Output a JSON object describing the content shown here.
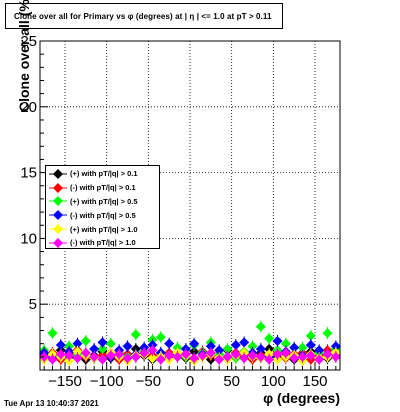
{
  "title": "Clone  over all for Primary vs φ (degrees) at | η | <= 1.0 at pT > 0.11",
  "timestamp": "Tue Apr 13 10:40:37 2021",
  "chart_data": {
    "type": "scatter",
    "xlabel": "φ (degrees)",
    "ylabel": "Clone  over all (%)",
    "xlim": [
      -180,
      180
    ],
    "ylim": [
      0,
      25
    ],
    "x_ticks": [
      -150,
      -100,
      -50,
      0,
      50,
      100,
      150
    ],
    "x_tick_labels": [
      "−150",
      "−100",
      "−50",
      "0",
      "50",
      "100",
      "150"
    ],
    "y_ticks": [
      0,
      5,
      10,
      15,
      20,
      25
    ],
    "y_tick_labels": [
      "",
      "5",
      "10",
      "15",
      "20",
      "25"
    ],
    "grid": true,
    "legend_position": "left-middle",
    "series": [
      {
        "name": "(+) with pT/|q| > 0.1",
        "color": "#000000",
        "marker": "diamond",
        "x": [
          -175,
          -165,
          -155,
          -145,
          -135,
          -125,
          -115,
          -105,
          -95,
          -85,
          -75,
          -65,
          -55,
          -45,
          -35,
          -25,
          -15,
          -5,
          5,
          15,
          25,
          35,
          45,
          55,
          65,
          75,
          85,
          95,
          105,
          115,
          125,
          135,
          145,
          155,
          165,
          175
        ],
        "y": [
          1.2,
          0.9,
          1.5,
          1.0,
          1.3,
          0.8,
          1.1,
          1.4,
          0.9,
          1.2,
          1.0,
          1.6,
          1.1,
          0.8,
          1.3,
          1.0,
          1.2,
          0.9,
          1.4,
          1.1,
          0.8,
          1.2,
          1.5,
          1.0,
          1.1,
          0.9,
          1.3,
          1.6,
          1.0,
          1.2,
          0.8,
          1.1,
          1.4,
          1.0,
          0.9,
          1.2
        ]
      },
      {
        "name": "(-) with pT/|q| > 0.1",
        "color": "#ff0000",
        "marker": "diamond",
        "x": [
          -175,
          -165,
          -155,
          -145,
          -135,
          -125,
          -115,
          -105,
          -95,
          -85,
          -75,
          -65,
          -55,
          -45,
          -35,
          -25,
          -15,
          -5,
          5,
          15,
          25,
          35,
          45,
          55,
          65,
          75,
          85,
          95,
          105,
          115,
          125,
          135,
          145,
          155,
          165,
          175
        ],
        "y": [
          1.0,
          1.3,
          0.8,
          1.2,
          1.5,
          1.0,
          0.9,
          1.1,
          1.3,
          0.8,
          1.2,
          1.0,
          1.4,
          1.1,
          0.9,
          1.3,
          1.0,
          1.2,
          0.8,
          1.4,
          1.1,
          0.9,
          1.0,
          1.3,
          1.2,
          0.8,
          1.1,
          1.0,
          1.4,
          0.9,
          1.2,
          1.3,
          0.8,
          1.1,
          1.5,
          1.0
        ]
      },
      {
        "name": "(+) with pT/|q| > 0.5",
        "color": "#00ff00",
        "marker": "diamond",
        "x": [
          -175,
          -165,
          -155,
          -145,
          -135,
          -125,
          -115,
          -105,
          -95,
          -85,
          -75,
          -65,
          -55,
          -45,
          -35,
          -25,
          -15,
          -5,
          5,
          15,
          25,
          35,
          45,
          55,
          65,
          75,
          85,
          95,
          105,
          115,
          125,
          135,
          145,
          155,
          165,
          175
        ],
        "y": [
          1.5,
          2.8,
          1.1,
          1.8,
          1.2,
          2.2,
          0.9,
          1.6,
          2.0,
          1.3,
          1.0,
          2.7,
          1.4,
          2.3,
          2.5,
          1.1,
          1.7,
          1.0,
          1.9,
          1.3,
          2.1,
          1.2,
          1.6,
          0.9,
          1.4,
          1.8,
          3.3,
          2.4,
          1.5,
          2.0,
          1.1,
          1.7,
          2.6,
          1.3,
          2.8,
          1.6
        ]
      },
      {
        "name": "(-) with pT/|q| > 0.5",
        "color": "#0000ff",
        "marker": "diamond",
        "x": [
          -175,
          -165,
          -155,
          -145,
          -135,
          -125,
          -115,
          -105,
          -95,
          -85,
          -75,
          -65,
          -55,
          -45,
          -35,
          -25,
          -15,
          -5,
          5,
          15,
          25,
          35,
          45,
          55,
          65,
          75,
          85,
          95,
          105,
          115,
          125,
          135,
          145,
          155,
          165,
          175
        ],
        "y": [
          1.3,
          1.0,
          1.9,
          1.4,
          2.0,
          1.1,
          1.6,
          2.1,
          1.0,
          1.5,
          1.8,
          1.2,
          1.7,
          1.9,
          1.3,
          2.0,
          1.1,
          1.6,
          2.0,
          1.2,
          1.8,
          1.5,
          1.0,
          1.9,
          2.1,
          1.3,
          1.6,
          1.0,
          2.2,
          1.4,
          1.7,
          1.1,
          1.9,
          1.5,
          1.2,
          1.8
        ]
      },
      {
        "name": "(+) with pT/|q| > 1.0",
        "color": "#ffff00",
        "marker": "diamond",
        "x": [
          -175,
          -165,
          -155,
          -145,
          -135,
          -125,
          -115,
          -105,
          -95,
          -85,
          -75,
          -65,
          -55,
          -45,
          -35,
          -25,
          -15,
          -5,
          5,
          15,
          25,
          35,
          45,
          55,
          65,
          75,
          85,
          95,
          105,
          115,
          125,
          135,
          145,
          155,
          165,
          175
        ],
        "y": [
          0.8,
          1.2,
          1.0,
          0.7,
          1.4,
          1.1,
          0.9,
          0.8,
          1.3,
          1.0,
          0.7,
          1.1,
          1.2,
          0.9,
          1.0,
          0.8,
          1.3,
          1.1,
          0.7,
          1.0,
          1.2,
          0.9,
          0.8,
          1.1,
          1.3,
          1.0,
          0.9,
          1.2,
          0.8,
          1.0,
          1.1,
          0.7,
          1.2,
          0.9,
          1.0,
          1.3
        ]
      },
      {
        "name": "(-) with pT/|q| > 1.0",
        "color": "#ff00ff",
        "marker": "diamond",
        "x": [
          -175,
          -165,
          -155,
          -145,
          -135,
          -125,
          -115,
          -105,
          -95,
          -85,
          -75,
          -65,
          -55,
          -45,
          -35,
          -25,
          -15,
          -5,
          5,
          15,
          25,
          35,
          45,
          55,
          65,
          75,
          85,
          95,
          105,
          115,
          125,
          135,
          145,
          155,
          165,
          175
        ],
        "y": [
          1.0,
          0.8,
          1.2,
          1.1,
          0.9,
          1.3,
          1.0,
          0.8,
          1.1,
          1.2,
          0.9,
          1.0,
          1.3,
          1.5,
          0.8,
          1.1,
          1.0,
          1.2,
          0.9,
          1.1,
          1.3,
          0.8,
          1.0,
          1.2,
          0.9,
          1.1,
          1.0,
          0.8,
          1.2,
          1.3,
          0.9,
          1.0,
          1.1,
          0.8,
          1.2,
          1.0
        ]
      }
    ]
  }
}
